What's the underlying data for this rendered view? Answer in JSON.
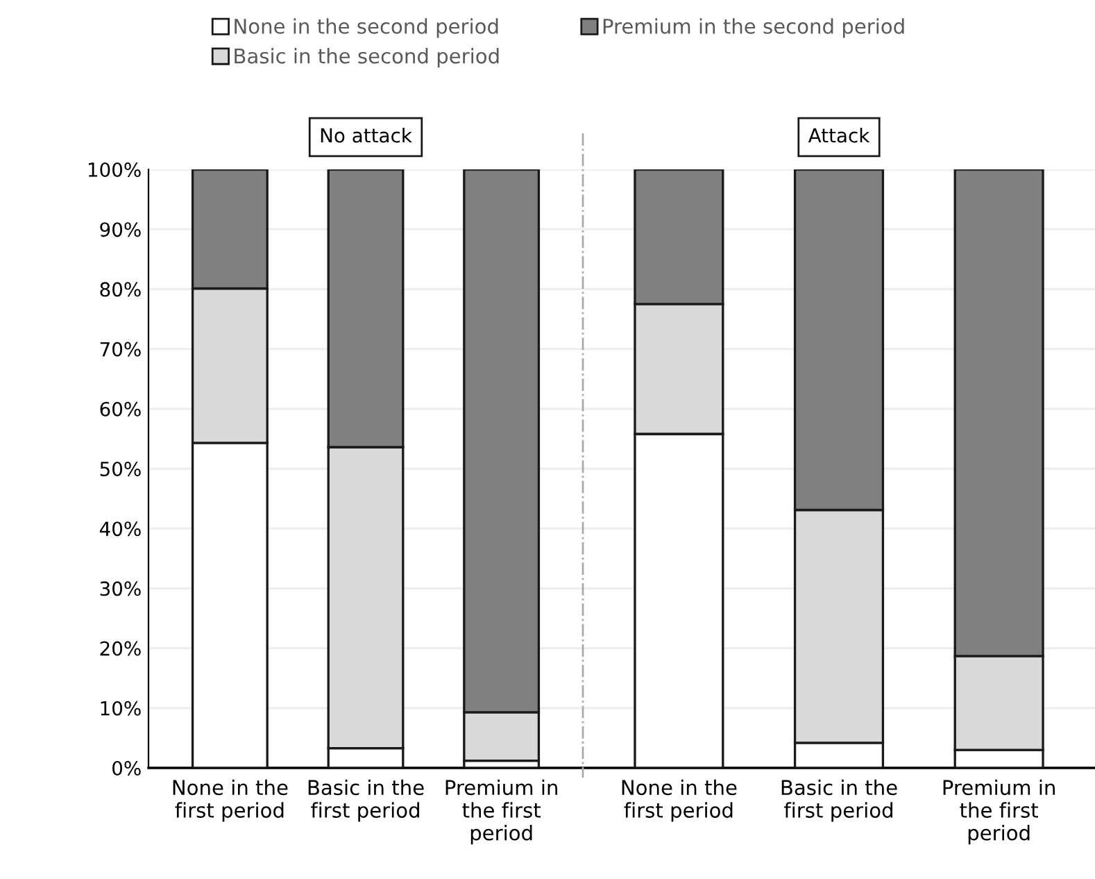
{
  "chart_data": [
    {
      "type": "bar",
      "title": "No attack",
      "stacked": true,
      "legend": "top",
      "grid": "y",
      "categories": [
        "None in the\nfirst period",
        "Basic in the\nfirst period",
        "Premium in\nthe first\nperiod"
      ],
      "ylim": [
        0,
        100
      ],
      "yticks": [
        {
          "value": 0,
          "label": "0%"
        },
        {
          "value": 10,
          "label": "10%"
        },
        {
          "value": 20,
          "label": "20%"
        },
        {
          "value": 30,
          "label": "30%"
        },
        {
          "value": 40,
          "label": "40%"
        },
        {
          "value": 50,
          "label": "50%"
        },
        {
          "value": 60,
          "label": "60%"
        },
        {
          "value": 70,
          "label": "70%"
        },
        {
          "value": 80,
          "label": "80%"
        },
        {
          "value": 90,
          "label": "90%"
        },
        {
          "value": 100,
          "label": "100%"
        }
      ],
      "series": [
        {
          "name": "None in the second period",
          "color": "#ffffff",
          "values": [
            54.3,
            3.3,
            1.2
          ]
        },
        {
          "name": "Basic in the second period",
          "color": "#d9d9d9",
          "values": [
            25.8,
            50.3,
            8.1
          ]
        },
        {
          "name": "Premium in the second period",
          "color": "#808080",
          "values": [
            19.9,
            46.4,
            90.7
          ]
        }
      ]
    },
    {
      "type": "bar",
      "title": "Attack",
      "stacked": true,
      "grid": "y",
      "tick_labels": "x",
      "categories": [
        "None in the\nfirst period",
        "Basic in the\nfirst period",
        "Premium in\nthe first\nperiod"
      ],
      "ylim": [
        0,
        100
      ],
      "yticks": [
        0,
        10,
        20,
        30,
        40,
        50,
        60,
        70,
        80,
        90,
        100
      ],
      "series": [
        {
          "color": "#ffffff",
          "values": [
            55.8,
            4.2,
            3.0
          ]
        },
        {
          "color": "#d9d9d9",
          "values": [
            21.7,
            38.9,
            15.7
          ]
        },
        {
          "color": "#808080",
          "values": [
            22.5,
            56.9,
            81.3
          ]
        }
      ]
    }
  ]
}
